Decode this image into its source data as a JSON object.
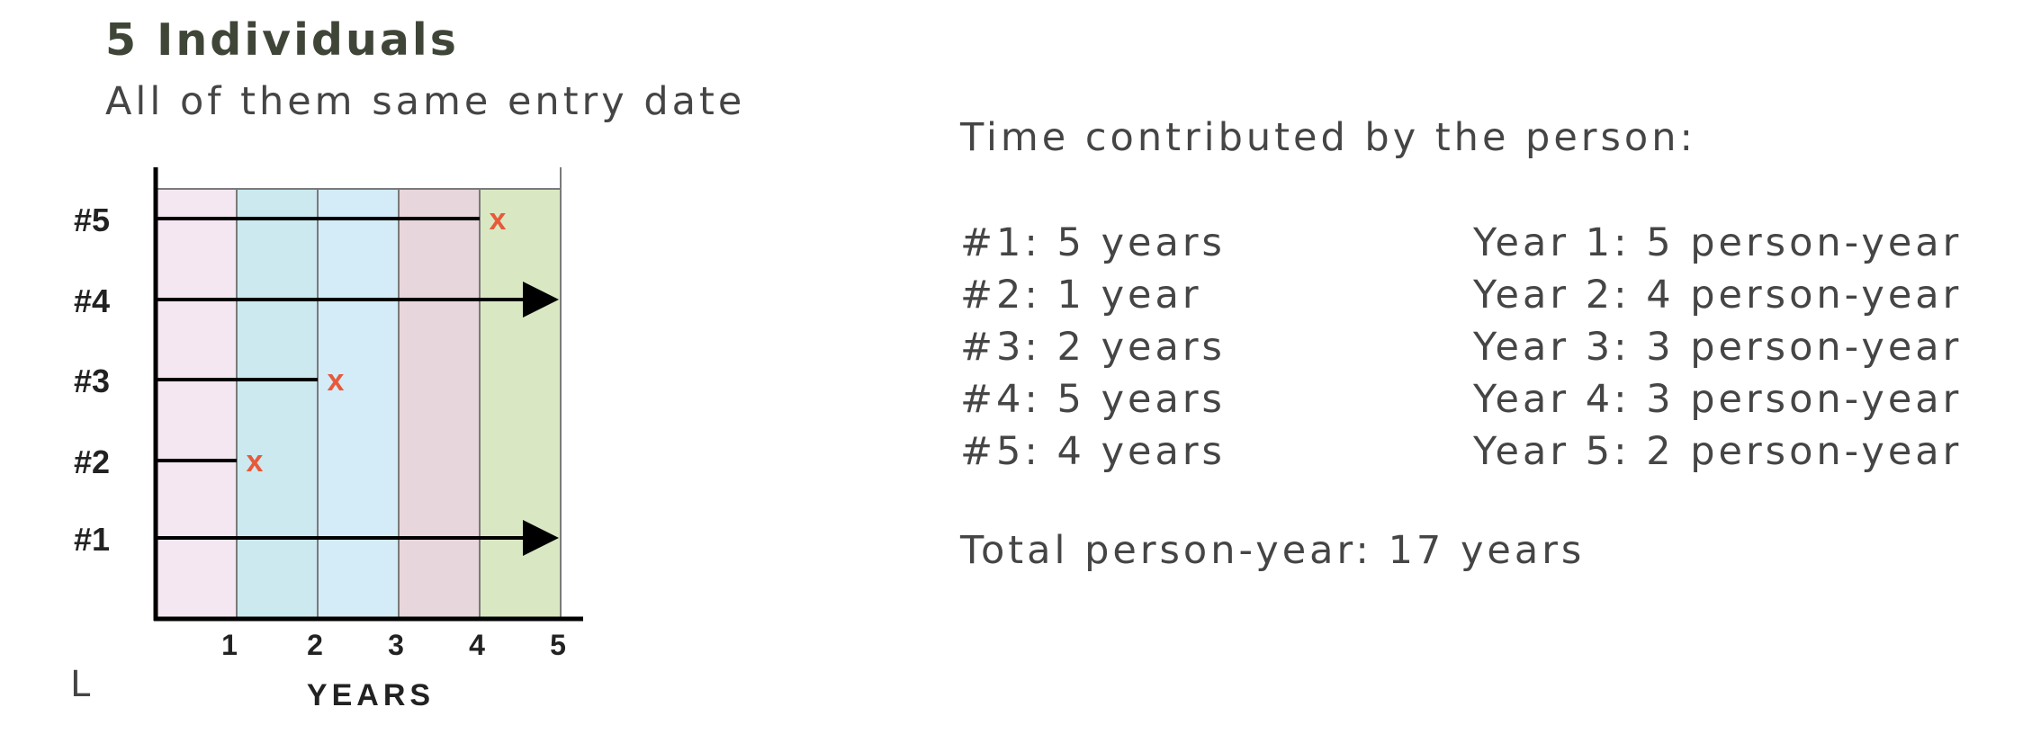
{
  "title": "5 Individuals",
  "subtitle": "All of them same entry date",
  "chart_data": {
    "type": "timeline",
    "xlabel": "YEARS",
    "x_ticks": [
      "1",
      "2",
      "3",
      "4",
      "5"
    ],
    "xlim": [
      0,
      5
    ],
    "year_band_colors": [
      "#f4e7f1",
      "#cbe9ef",
      "#d3ecf7",
      "#e7d6db",
      "#d9e8c3"
    ],
    "line_color": "#000000",
    "event_color": "#e8593a",
    "event_marker": "x",
    "individuals": [
      {
        "label": "#1",
        "end": 5,
        "censored": true
      },
      {
        "label": "#2",
        "end": 1,
        "censored": false
      },
      {
        "label": "#3",
        "end": 2,
        "censored": false
      },
      {
        "label": "#4",
        "end": 5,
        "censored": true
      },
      {
        "label": "#5",
        "end": 4,
        "censored": false
      }
    ]
  },
  "stray_mark": "L",
  "summary": {
    "heading": "Time contributed by the person:",
    "persons": [
      "#1: 5 years",
      "#2: 1 year",
      "#3: 2 years",
      "#4: 5 years",
      "#5: 4 years"
    ],
    "years": [
      "Year 1: 5 person-year",
      "Year 2: 4 person-year",
      "Year 3: 3 person-year",
      "Year 4: 3 person-year",
      "Year 5: 2 person-year"
    ],
    "total": "Total person-year: 17 years"
  }
}
